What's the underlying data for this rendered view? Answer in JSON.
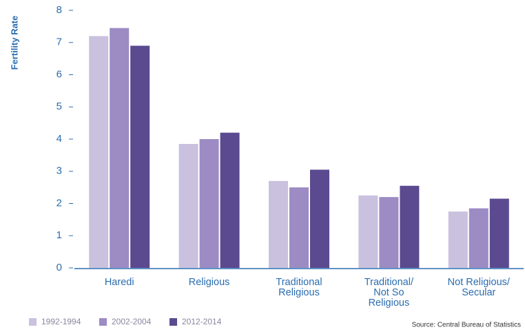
{
  "chart_data": {
    "type": "bar",
    "y_label": "Fertility Rate",
    "categories": [
      "Haredi",
      "Religious",
      "Traditional\nReligious",
      "Traditional/\nNot So\nReligious",
      "Not Religious/\nSecular"
    ],
    "series": [
      {
        "name": "1992-1994",
        "color": "#c9c1de",
        "values": [
          7.2,
          3.85,
          2.7,
          2.25,
          1.75
        ]
      },
      {
        "name": "2002-2004",
        "color": "#9d8bc4",
        "values": [
          7.45,
          4.0,
          2.5,
          2.2,
          1.85
        ]
      },
      {
        "name": "2012-2014",
        "color": "#5b4a8f",
        "values": [
          6.9,
          4.2,
          3.05,
          2.55,
          2.15
        ]
      }
    ],
    "ylim": [
      0,
      8
    ],
    "yticks": [
      0,
      1,
      2,
      3,
      4,
      5,
      6,
      7,
      8
    ],
    "source": "Source: Central Bureau of Statistics"
  }
}
